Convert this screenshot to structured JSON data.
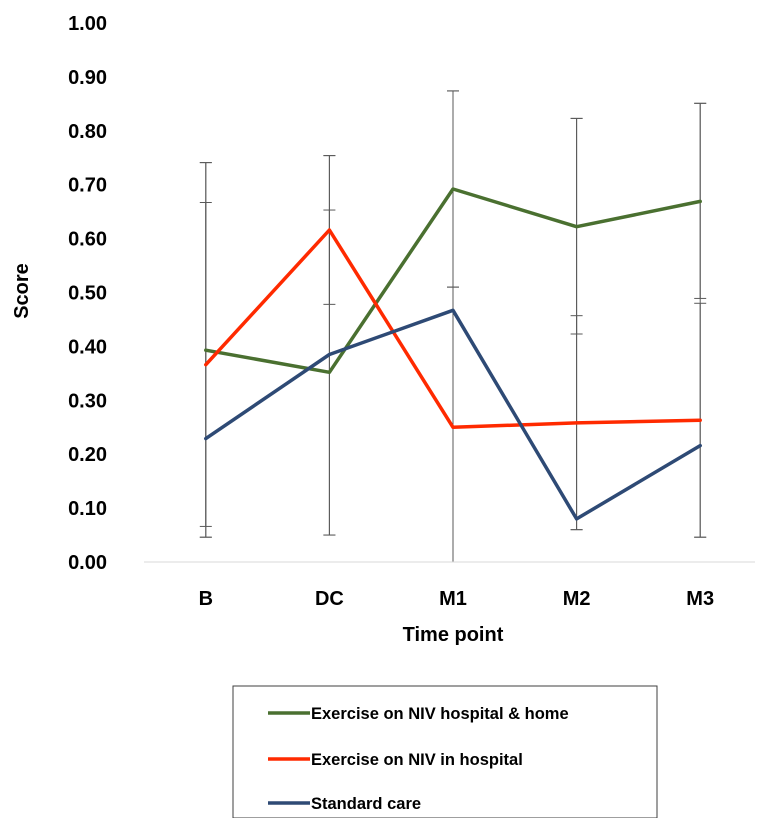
{
  "chart_data": {
    "type": "line",
    "title": "",
    "xlabel": "Time point",
    "ylabel": "Score",
    "categories": [
      "B",
      "DC",
      "M1",
      "M2",
      "M3"
    ],
    "ylim": [
      0,
      1
    ],
    "yticks": [
      "0.00",
      "0.10",
      "0.20",
      "0.30",
      "0.40",
      "0.50",
      "0.60",
      "0.70",
      "0.80",
      "0.90",
      "1.00"
    ],
    "grid": false,
    "error_bars": true,
    "legend_position": "bottom",
    "series": [
      {
        "name": "Exercise on NIV hospital & home",
        "color": "#4a7030",
        "values": [
          0.393,
          0.352,
          0.692,
          0.622,
          0.669
        ],
        "error_low": [
          0.066,
          0.05,
          0.51,
          0.423,
          0.489
        ],
        "error_high": [
          0.741,
          0.754,
          0.874,
          0.823,
          0.851
        ]
      },
      {
        "name": "Exercise on NIV in hospital",
        "color": "#ff2a00",
        "values": [
          0.366,
          0.616,
          0.25,
          0.258,
          0.263
        ],
        "error_low": [
          0.046,
          0.478,
          0.0,
          0.06,
          0.046
        ],
        "error_high": [
          0.667,
          0.653,
          0.51,
          0.457,
          0.48
        ]
      },
      {
        "name": "Standard care",
        "color": "#2e4a75",
        "values": [
          0.229,
          0.385,
          0.467,
          0.08,
          0.216
        ],
        "error_low": [
          0.046,
          0.05,
          0.0,
          0.06,
          0.046
        ],
        "error_high": [
          0.741,
          0.754,
          0.874,
          0.823,
          0.851
        ]
      }
    ]
  }
}
